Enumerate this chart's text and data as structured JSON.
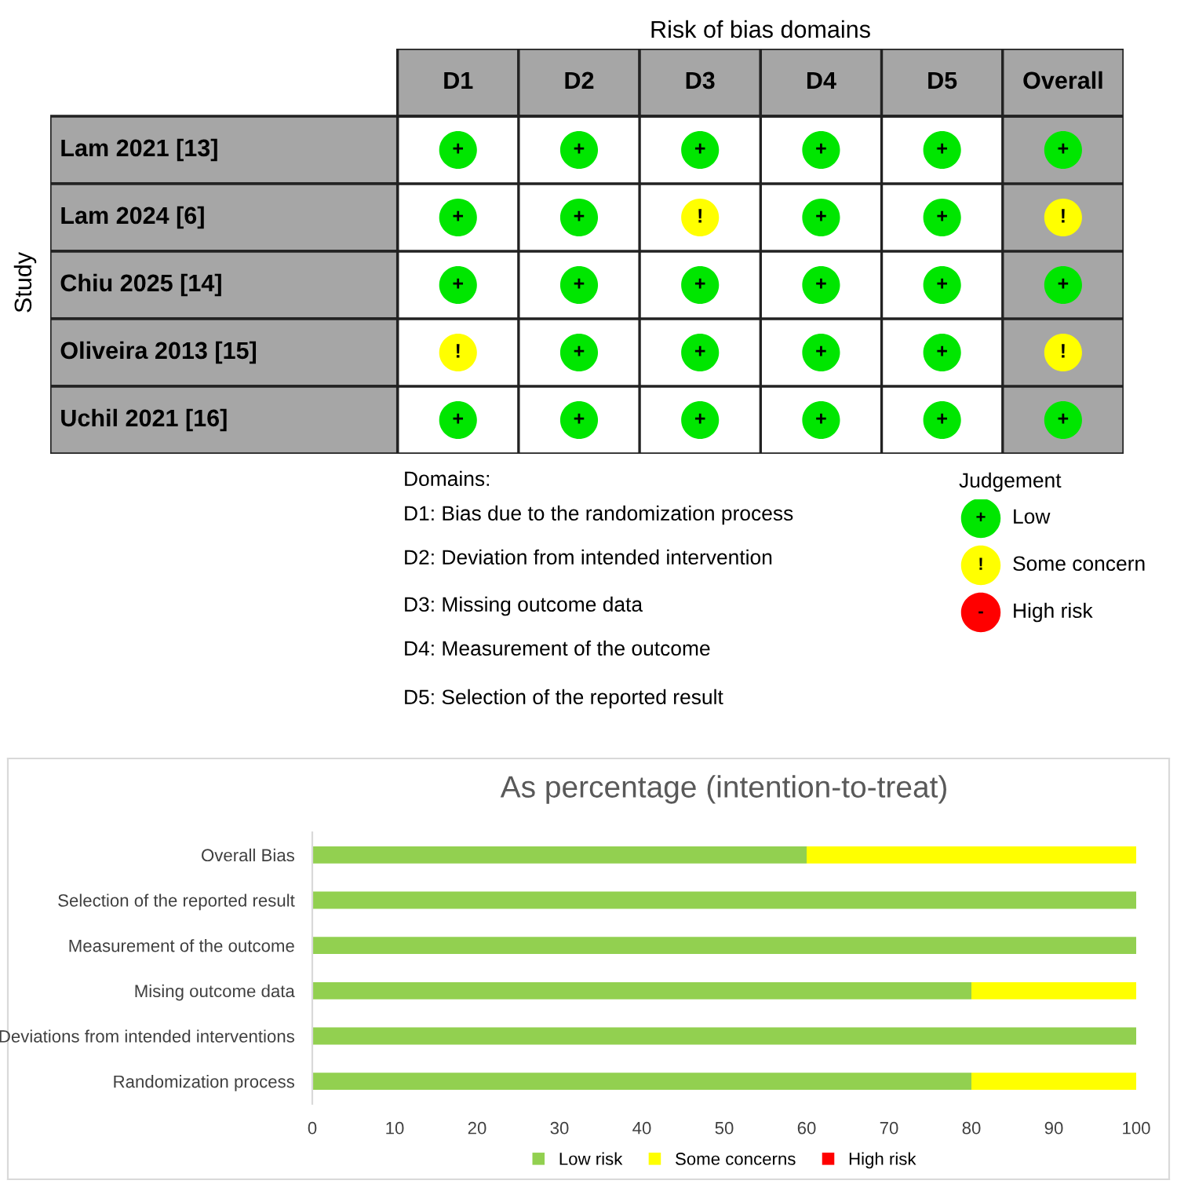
{
  "chart_data": [
    {
      "type": "heatmap",
      "title": "Risk of bias domains",
      "ylabel": "Study",
      "categories": [
        "D1",
        "D2",
        "D3",
        "D4",
        "D5",
        "Overall"
      ],
      "y_categories": [
        "Lam 2021 [13]",
        "Lam 2024 [6]",
        "Chiu 2025 [14]",
        "Oliveira 2013 [15]",
        "Uchil 2021 [16]"
      ],
      "cells": [
        [
          "+",
          "+",
          "+",
          "+",
          "+",
          "+"
        ],
        [
          "+",
          "+",
          "!",
          "+",
          "+",
          "!"
        ],
        [
          "+",
          "+",
          "+",
          "+",
          "+",
          "+"
        ],
        [
          "!",
          "+",
          "+",
          "+",
          "+",
          "!"
        ],
        [
          "+",
          "+",
          "+",
          "+",
          "+",
          "+"
        ]
      ],
      "clabel": "Judgement",
      "cticks": [
        {
          "value": "+",
          "label": "Low"
        },
        {
          "value": "!",
          "label": "Some concern"
        },
        {
          "value": "-",
          "label": "High risk"
        }
      ],
      "colors": [
        "#00e600",
        "#ffff00",
        "#ff0000"
      ],
      "annotations": [
        "Domains:",
        "D1: Bias due to the randomization process",
        "D2: Deviation from intended intervention",
        "D3: Missing outcome data",
        "D4: Measurement of the outcome",
        "D5: Selection of the reported result"
      ]
    },
    {
      "type": "bar",
      "orientation": "horizontal",
      "stacked": true,
      "title": "As percentage (intention-to-treat)",
      "categories": [
        "Overall Bias",
        "Selection of the reported result",
        "Measurement of the outcome",
        "Mising outcome data",
        "Deviations from intended interventions",
        "Randomization process"
      ],
      "series": [
        {
          "name": "Low risk",
          "color": "#92d050",
          "values": [
            60,
            100,
            100,
            80,
            100,
            80
          ]
        },
        {
          "name": "Some concerns",
          "color": "#ffff00",
          "values": [
            40,
            0,
            0,
            20,
            0,
            20
          ]
        },
        {
          "name": "High risk",
          "color": "#ff0000",
          "values": [
            0,
            0,
            0,
            0,
            0,
            0
          ]
        }
      ],
      "xlim": [
        0,
        100
      ],
      "xticks": [
        0,
        10,
        20,
        30,
        40,
        50,
        60,
        70,
        80,
        90,
        100
      ],
      "grid": false,
      "legend": "bottom"
    }
  ]
}
